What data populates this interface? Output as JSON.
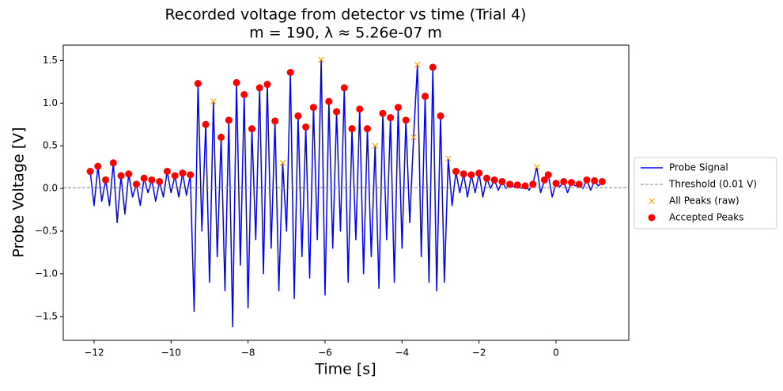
{
  "chart_data": {
    "type": "line",
    "title": "Recorded voltage from detector vs time (Trial 4)",
    "subtitle": "m = 190, λ ≈ 5.26e-07 m",
    "x_label": "Time [s]",
    "y_label": "Probe Voltage [V]",
    "xlim": [
      -12.8,
      1.89
    ],
    "ylim": [
      -1.78,
      1.68
    ],
    "xticks": [
      {
        "value": -12,
        "label": "−12"
      },
      {
        "value": -10,
        "label": "−10"
      },
      {
        "value": -8,
        "label": "−8"
      },
      {
        "value": -6,
        "label": "−6"
      },
      {
        "value": -4,
        "label": "−4"
      },
      {
        "value": -2,
        "label": "−2"
      },
      0
    ],
    "yticks": [
      {
        "value": -1.5,
        "label": "−1.5"
      },
      {
        "value": -1,
        "label": "−1.0"
      },
      {
        "value": -0.5,
        "label": "−0.5"
      },
      {
        "value": 0,
        "label": "0.0"
      },
      0.5,
      {
        "value": 1,
        "label": "1.0"
      },
      1.5
    ],
    "threshold": {
      "name": "Threshold (0.01 V)",
      "color": "#808080",
      "value": 0.01
    },
    "series": [
      {
        "name": "Probe Signal",
        "color": "#0000ff",
        "style": "line",
        "x": [
          -12.1,
          -12.0,
          -11.9,
          -11.8,
          -11.7,
          -11.6,
          -11.5,
          -11.4,
          -11.3,
          -11.2,
          -11.1,
          -11.0,
          -10.9,
          -10.8,
          -10.7,
          -10.6,
          -10.5,
          -10.4,
          -10.3,
          -10.2,
          -10.1,
          -10.0,
          -9.9,
          -9.8,
          -9.7,
          -9.6,
          -9.5,
          -9.4,
          -9.3,
          -9.2,
          -9.1,
          -9.0,
          -8.9,
          -8.8,
          -8.7,
          -8.6,
          -8.5,
          -8.4,
          -8.3,
          -8.2,
          -8.1,
          -8.0,
          -7.9,
          -7.8,
          -7.7,
          -7.6,
          -7.5,
          -7.4,
          -7.3,
          -7.2,
          -7.1,
          -7.0,
          -6.9,
          -6.8,
          -6.7,
          -6.6,
          -6.5,
          -6.4,
          -6.3,
          -6.2,
          -6.1,
          -6.0,
          -5.9,
          -5.8,
          -5.7,
          -5.6,
          -5.5,
          -5.4,
          -5.3,
          -5.2,
          -5.1,
          -5.0,
          -4.9,
          -4.8,
          -4.7,
          -4.6,
          -4.5,
          -4.4,
          -4.3,
          -4.2,
          -4.1,
          -4.0,
          -3.9,
          -3.8,
          -3.7,
          -3.6,
          -3.5,
          -3.4,
          -3.3,
          -3.2,
          -3.1,
          -3.0,
          -2.9,
          -2.8,
          -2.7,
          -2.6,
          -2.5,
          -2.4,
          -2.3,
          -2.2,
          -2.1,
          -2.0,
          -1.9,
          -1.8,
          -1.7,
          -1.6,
          -1.5,
          -1.4,
          -1.3,
          -1.2,
          -1.1,
          -1.0,
          -0.9,
          -0.8,
          -0.7,
          -0.6,
          -0.5,
          -0.4,
          -0.3,
          -0.2,
          -0.1,
          0.0,
          0.1,
          0.2,
          0.3,
          0.4,
          0.5,
          0.6,
          0.7,
          0.8,
          0.9,
          1.0,
          1.1,
          1.2
        ],
        "values": [
          0.2,
          -0.2,
          0.26,
          -0.15,
          0.1,
          -0.2,
          0.3,
          -0.4,
          0.15,
          -0.3,
          0.17,
          -0.1,
          0.05,
          -0.2,
          0.12,
          -0.05,
          0.1,
          -0.15,
          0.08,
          -0.1,
          0.2,
          -0.05,
          0.15,
          -0.1,
          0.18,
          -0.08,
          0.16,
          -1.44,
          1.23,
          -0.5,
          0.75,
          -1.1,
          1.02,
          -0.8,
          0.6,
          -1.2,
          0.8,
          -1.62,
          1.24,
          -0.9,
          1.1,
          -1.4,
          0.7,
          -0.6,
          1.18,
          -1.0,
          1.22,
          -0.7,
          0.79,
          -1.2,
          0.3,
          -0.5,
          1.36,
          -1.29,
          0.85,
          -0.8,
          0.72,
          -1.05,
          0.95,
          -0.6,
          1.51,
          -1.25,
          1.02,
          -0.7,
          0.9,
          -0.5,
          1.18,
          -1.1,
          0.7,
          -0.6,
          0.93,
          -1.0,
          0.7,
          -0.8,
          0.5,
          -1.17,
          0.88,
          -0.6,
          0.83,
          -1.1,
          0.95,
          -0.7,
          0.8,
          -0.4,
          0.6,
          1.45,
          -0.8,
          1.08,
          -1.1,
          1.42,
          -1.2,
          0.85,
          -1.1,
          0.35,
          -0.2,
          0.2,
          -0.05,
          0.17,
          -0.1,
          0.16,
          -0.05,
          0.18,
          -0.1,
          0.12,
          0.0,
          0.1,
          -0.02,
          0.08,
          0.0,
          0.05,
          0.02,
          0.04,
          0.0,
          0.03,
          -0.02,
          0.05,
          0.25,
          -0.05,
          0.1,
          0.16,
          -0.1,
          0.06,
          0.02,
          0.08,
          -0.05,
          0.07,
          0.03,
          0.05,
          0.0,
          0.1,
          -0.02,
          0.09,
          0.03,
          0.08
        ]
      },
      {
        "name": "All Peaks (raw)",
        "color": "#ffa500",
        "style": "x",
        "x": [
          -8.9,
          -7.1,
          -6.1,
          -4.7,
          -3.7,
          -3.6,
          -2.8,
          -0.5
        ],
        "values": [
          1.02,
          0.3,
          1.51,
          0.5,
          0.6,
          1.45,
          0.35,
          0.25
        ]
      },
      {
        "name": "Accepted Peaks",
        "color": "#ff0000",
        "style": "dot",
        "x": [
          -12.1,
          -11.9,
          -11.7,
          -11.5,
          -11.3,
          -11.1,
          -10.9,
          -10.7,
          -10.5,
          -10.3,
          -10.1,
          -9.9,
          -9.7,
          -9.5,
          -9.3,
          -9.1,
          -8.7,
          -8.5,
          -8.3,
          -8.1,
          -7.9,
          -7.7,
          -7.5,
          -7.3,
          -6.9,
          -6.7,
          -6.5,
          -6.3,
          -5.9,
          -5.7,
          -5.5,
          -5.3,
          -5.1,
          -4.9,
          -4.5,
          -4.3,
          -4.1,
          -3.9,
          -3.4,
          -3.2,
          -3.0,
          -2.6,
          -2.4,
          -2.2,
          -2.0,
          -1.8,
          -1.6,
          -1.4,
          -1.2,
          -1.0,
          -0.8,
          -0.6,
          -0.3,
          -0.2,
          0.0,
          0.2,
          0.4,
          0.6,
          0.8,
          1.0,
          1.2
        ],
        "values": [
          0.2,
          0.26,
          0.1,
          0.3,
          0.15,
          0.17,
          0.05,
          0.12,
          0.1,
          0.08,
          0.2,
          0.15,
          0.18,
          0.16,
          1.23,
          0.75,
          0.6,
          0.8,
          1.24,
          1.1,
          0.7,
          1.18,
          1.22,
          0.79,
          1.36,
          0.85,
          0.72,
          0.95,
          1.02,
          0.9,
          1.18,
          0.7,
          0.93,
          0.7,
          0.88,
          0.83,
          0.95,
          0.8,
          1.08,
          1.42,
          0.85,
          0.2,
          0.17,
          0.16,
          0.18,
          0.12,
          0.1,
          0.08,
          0.05,
          0.04,
          0.03,
          0.05,
          0.1,
          0.16,
          0.06,
          0.08,
          0.07,
          0.05,
          0.1,
          0.09,
          0.08
        ]
      }
    ]
  }
}
